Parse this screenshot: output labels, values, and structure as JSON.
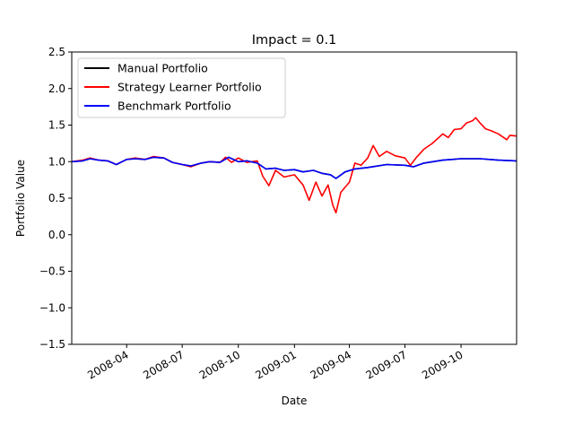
{
  "chart_data": {
    "type": "line",
    "title": "Impact = 0.1",
    "xlabel": "Date",
    "ylabel": "Portfolio Value",
    "xlim": [
      "2008-01-02",
      "2009-12-31"
    ],
    "ylim": [
      -1.5,
      2.5
    ],
    "yticks": [
      -1.5,
      -1.0,
      -0.5,
      0.0,
      0.5,
      1.0,
      1.5,
      2.0,
      2.5
    ],
    "ytick_labels": [
      "−1.5",
      "−1.0",
      "−0.5",
      "0.0",
      "0.5",
      "1.0",
      "1.5",
      "2.0",
      "2.5"
    ],
    "xticks": [
      "2008-04-01",
      "2008-07-01",
      "2008-10-01",
      "2009-01-01",
      "2009-04-01",
      "2009-07-01",
      "2009-10-01"
    ],
    "xtick_labels": [
      "2008-04",
      "2008-07",
      "2008-10",
      "2009-01",
      "2009-04",
      "2009-07",
      "2009-10"
    ],
    "grid": false,
    "legend_position": "top-left",
    "series": [
      {
        "name": "Manual Portfolio",
        "color": "#000000",
        "points": [
          [
            "2008-01-02",
            1.0
          ],
          [
            "2008-01-20",
            1.01
          ],
          [
            "2008-02-01",
            1.04
          ],
          [
            "2008-02-15",
            1.02
          ],
          [
            "2008-03-01",
            1.01
          ],
          [
            "2008-03-15",
            0.96
          ],
          [
            "2008-04-01",
            1.03
          ],
          [
            "2008-04-15",
            1.04
          ],
          [
            "2008-05-01",
            1.03
          ],
          [
            "2008-05-15",
            1.06
          ],
          [
            "2008-06-01",
            1.05
          ],
          [
            "2008-06-15",
            0.99
          ],
          [
            "2008-07-01",
            0.96
          ],
          [
            "2008-07-15",
            0.94
          ],
          [
            "2008-08-01",
            0.98
          ],
          [
            "2008-08-15",
            1.0
          ],
          [
            "2008-09-01",
            0.99
          ],
          [
            "2008-09-15",
            1.06
          ],
          [
            "2008-10-01",
            1.0
          ],
          [
            "2008-10-15",
            1.01
          ],
          [
            "2008-11-01",
            0.98
          ],
          [
            "2008-11-15",
            0.9
          ],
          [
            "2008-12-01",
            0.91
          ],
          [
            "2008-12-15",
            0.88
          ],
          [
            "2009-01-01",
            0.89
          ],
          [
            "2009-01-15",
            0.86
          ],
          [
            "2009-02-01",
            0.88
          ],
          [
            "2009-02-15",
            0.84
          ],
          [
            "2009-03-01",
            0.82
          ],
          [
            "2009-03-10",
            0.77
          ],
          [
            "2009-03-25",
            0.86
          ],
          [
            "2009-04-10",
            0.9
          ],
          [
            "2009-05-01",
            0.92
          ],
          [
            "2009-06-01",
            0.96
          ],
          [
            "2009-07-01",
            0.95
          ],
          [
            "2009-07-15",
            0.93
          ],
          [
            "2009-08-01",
            0.98
          ],
          [
            "2009-09-01",
            1.02
          ],
          [
            "2009-10-01",
            1.04
          ],
          [
            "2009-11-01",
            1.04
          ],
          [
            "2009-12-01",
            1.02
          ],
          [
            "2009-12-31",
            1.01
          ]
        ]
      },
      {
        "name": "Strategy Learner Portfolio",
        "color": "#ff0000",
        "points": [
          [
            "2008-01-02",
            1.0
          ],
          [
            "2008-01-20",
            1.02
          ],
          [
            "2008-02-01",
            1.05
          ],
          [
            "2008-02-15",
            1.02
          ],
          [
            "2008-03-01",
            1.01
          ],
          [
            "2008-03-15",
            0.96
          ],
          [
            "2008-04-01",
            1.03
          ],
          [
            "2008-04-15",
            1.05
          ],
          [
            "2008-05-01",
            1.03
          ],
          [
            "2008-05-15",
            1.07
          ],
          [
            "2008-06-01",
            1.05
          ],
          [
            "2008-06-15",
            0.99
          ],
          [
            "2008-07-01",
            0.96
          ],
          [
            "2008-07-15",
            0.93
          ],
          [
            "2008-08-01",
            0.98
          ],
          [
            "2008-08-15",
            1.0
          ],
          [
            "2008-09-01",
            0.99
          ],
          [
            "2008-09-10",
            1.06
          ],
          [
            "2008-09-20",
            0.99
          ],
          [
            "2008-10-01",
            1.05
          ],
          [
            "2008-10-15",
            0.99
          ],
          [
            "2008-11-01",
            1.01
          ],
          [
            "2008-11-10",
            0.8
          ],
          [
            "2008-11-20",
            0.67
          ],
          [
            "2008-12-01",
            0.88
          ],
          [
            "2008-12-15",
            0.79
          ],
          [
            "2009-01-01",
            0.82
          ],
          [
            "2009-01-15",
            0.68
          ],
          [
            "2009-01-25",
            0.47
          ],
          [
            "2009-02-05",
            0.72
          ],
          [
            "2009-02-15",
            0.53
          ],
          [
            "2009-02-25",
            0.68
          ],
          [
            "2009-03-05",
            0.4
          ],
          [
            "2009-03-10",
            0.3
          ],
          [
            "2009-03-18",
            0.58
          ],
          [
            "2009-04-01",
            0.72
          ],
          [
            "2009-04-10",
            0.98
          ],
          [
            "2009-04-20",
            0.95
          ],
          [
            "2009-05-01",
            1.05
          ],
          [
            "2009-05-10",
            1.22
          ],
          [
            "2009-05-20",
            1.07
          ],
          [
            "2009-06-01",
            1.14
          ],
          [
            "2009-06-15",
            1.08
          ],
          [
            "2009-07-01",
            1.05
          ],
          [
            "2009-07-10",
            0.95
          ],
          [
            "2009-07-20",
            1.06
          ],
          [
            "2009-08-01",
            1.17
          ],
          [
            "2009-08-15",
            1.25
          ],
          [
            "2009-09-01",
            1.38
          ],
          [
            "2009-09-10",
            1.33
          ],
          [
            "2009-09-20",
            1.44
          ],
          [
            "2009-10-01",
            1.45
          ],
          [
            "2009-10-10",
            1.53
          ],
          [
            "2009-10-20",
            1.56
          ],
          [
            "2009-10-25",
            1.6
          ],
          [
            "2009-11-01",
            1.53
          ],
          [
            "2009-11-10",
            1.45
          ],
          [
            "2009-11-20",
            1.42
          ],
          [
            "2009-12-01",
            1.38
          ],
          [
            "2009-12-15",
            1.3
          ],
          [
            "2009-12-20",
            1.36
          ],
          [
            "2009-12-31",
            1.35
          ]
        ]
      },
      {
        "name": "Benchmark Portfolio",
        "color": "#0000ff",
        "points": [
          [
            "2008-01-02",
            1.0
          ],
          [
            "2008-01-20",
            1.01
          ],
          [
            "2008-02-01",
            1.04
          ],
          [
            "2008-02-15",
            1.02
          ],
          [
            "2008-03-01",
            1.01
          ],
          [
            "2008-03-15",
            0.96
          ],
          [
            "2008-04-01",
            1.03
          ],
          [
            "2008-04-15",
            1.04
          ],
          [
            "2008-05-01",
            1.03
          ],
          [
            "2008-05-15",
            1.06
          ],
          [
            "2008-06-01",
            1.05
          ],
          [
            "2008-06-15",
            0.99
          ],
          [
            "2008-07-01",
            0.96
          ],
          [
            "2008-07-15",
            0.94
          ],
          [
            "2008-08-01",
            0.98
          ],
          [
            "2008-08-15",
            1.0
          ],
          [
            "2008-09-01",
            0.99
          ],
          [
            "2008-09-15",
            1.06
          ],
          [
            "2008-10-01",
            1.0
          ],
          [
            "2008-10-15",
            1.01
          ],
          [
            "2008-11-01",
            0.98
          ],
          [
            "2008-11-15",
            0.9
          ],
          [
            "2008-12-01",
            0.91
          ],
          [
            "2008-12-15",
            0.88
          ],
          [
            "2009-01-01",
            0.89
          ],
          [
            "2009-01-15",
            0.86
          ],
          [
            "2009-02-01",
            0.88
          ],
          [
            "2009-02-15",
            0.84
          ],
          [
            "2009-03-01",
            0.82
          ],
          [
            "2009-03-10",
            0.77
          ],
          [
            "2009-03-25",
            0.86
          ],
          [
            "2009-04-10",
            0.9
          ],
          [
            "2009-05-01",
            0.92
          ],
          [
            "2009-06-01",
            0.96
          ],
          [
            "2009-07-01",
            0.95
          ],
          [
            "2009-07-15",
            0.93
          ],
          [
            "2009-08-01",
            0.98
          ],
          [
            "2009-09-01",
            1.02
          ],
          [
            "2009-10-01",
            1.04
          ],
          [
            "2009-11-01",
            1.04
          ],
          [
            "2009-12-01",
            1.02
          ],
          [
            "2009-12-31",
            1.01
          ]
        ]
      }
    ]
  }
}
